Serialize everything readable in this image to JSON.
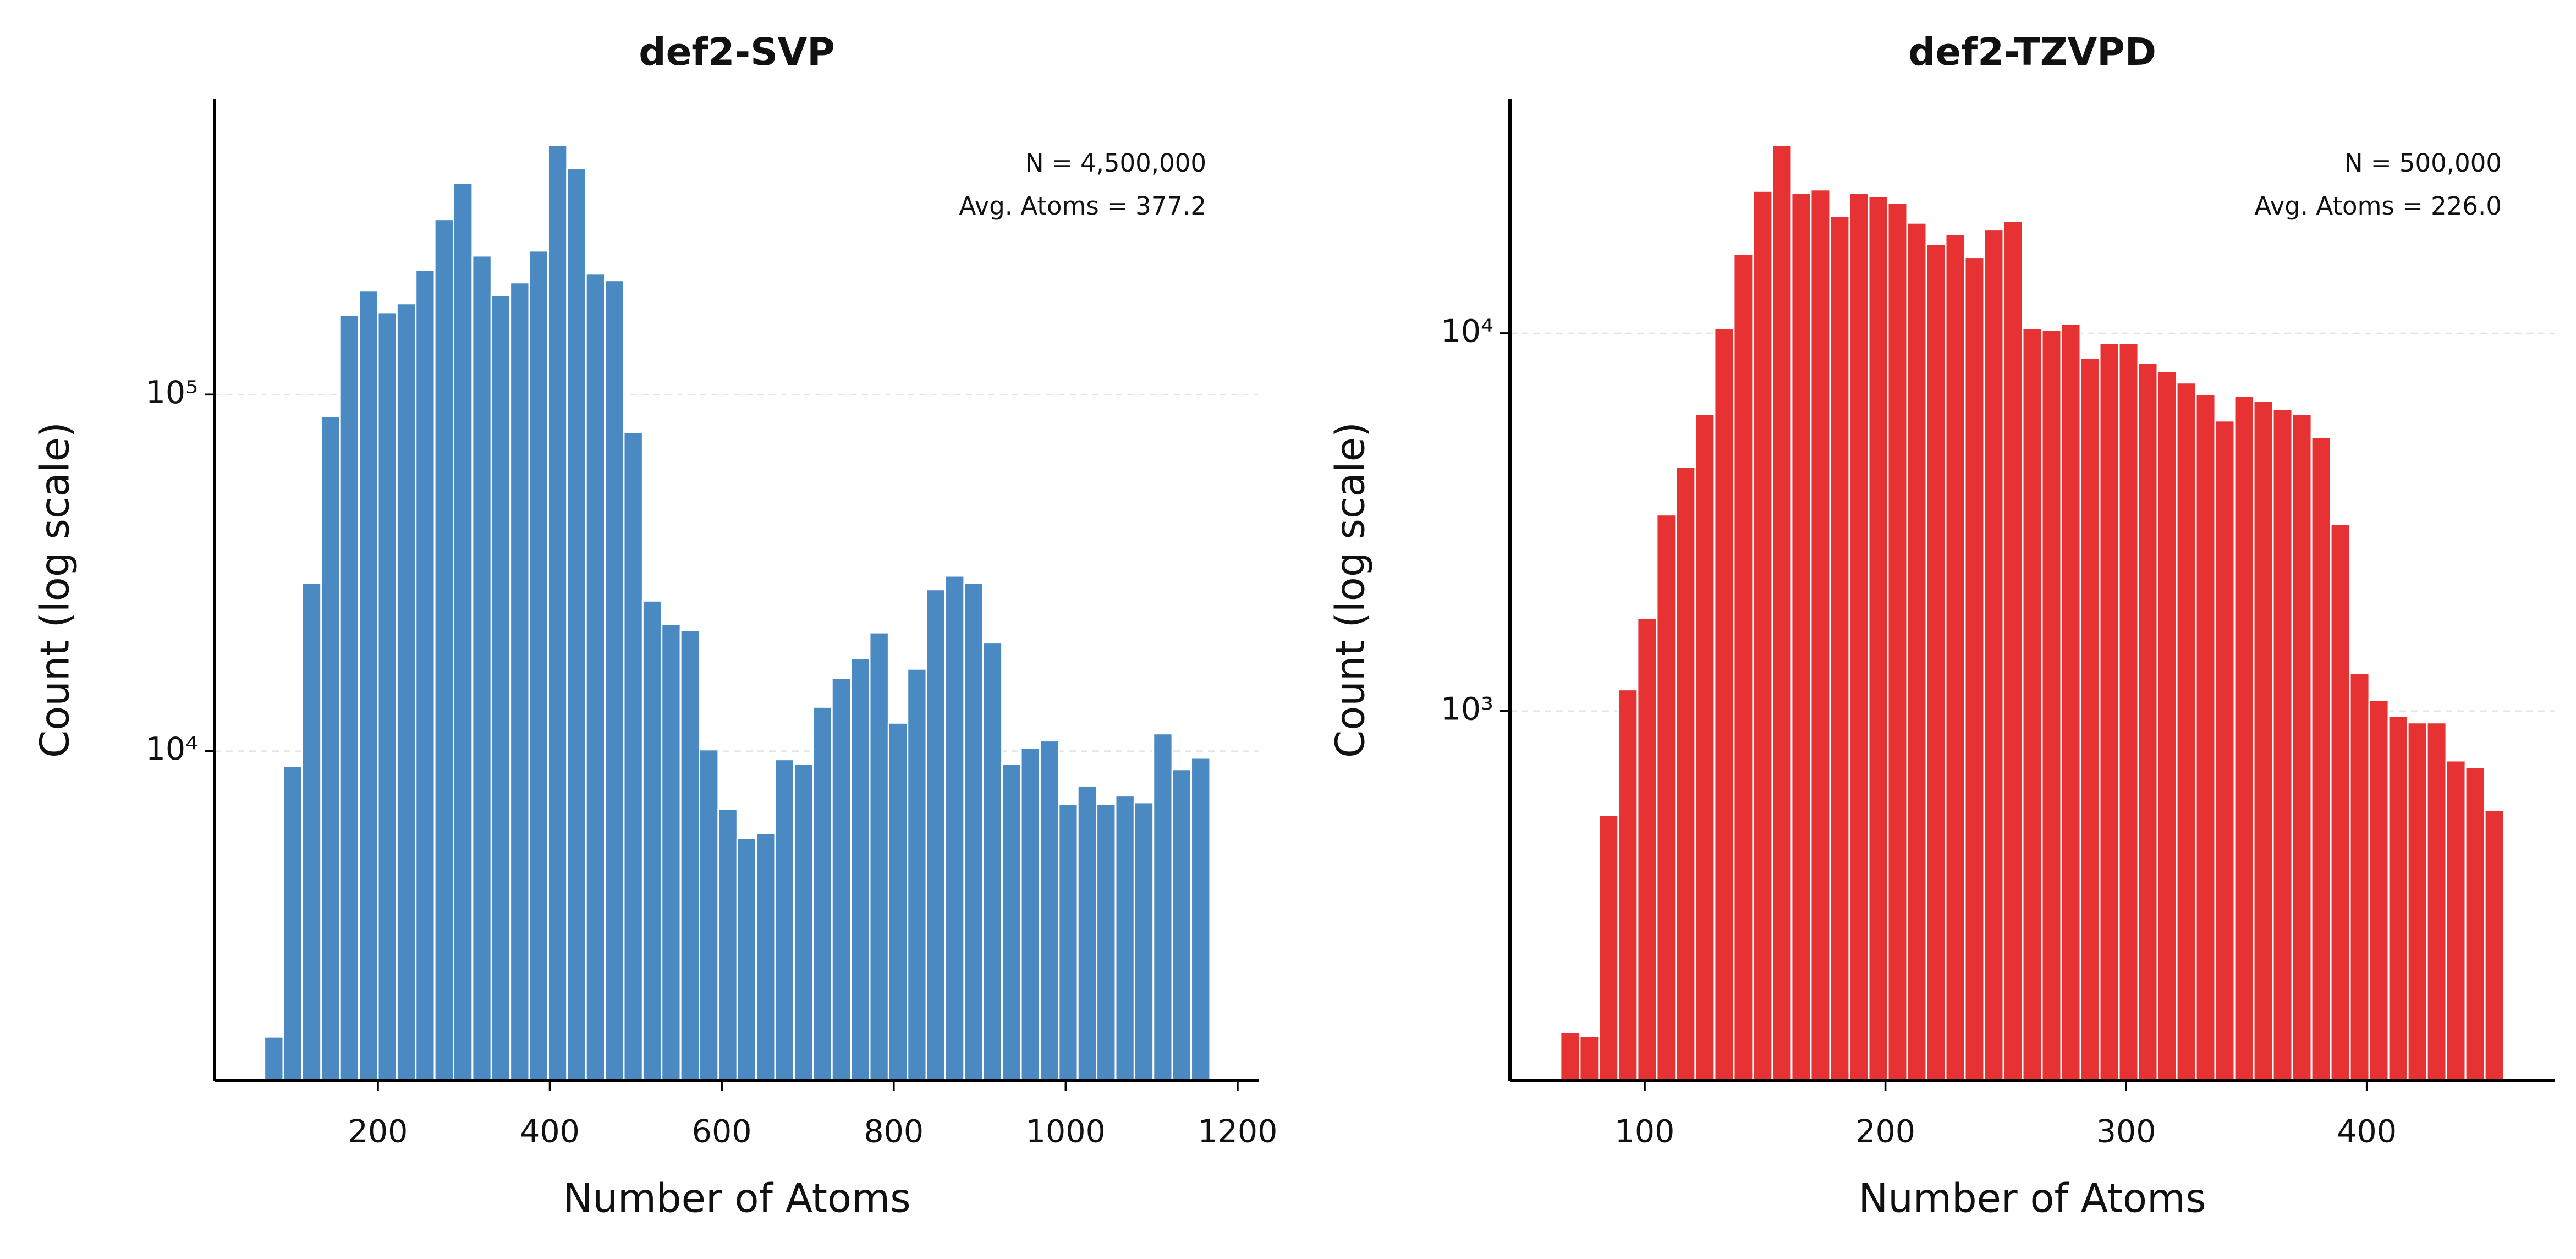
{
  "chart_data": [
    {
      "type": "histogram",
      "title": "def2-SVP",
      "xlabel": "Number of Atoms",
      "ylabel": "Count (log scale)",
      "annotations": [
        "N = 4,500,000",
        "Avg. Atoms = 377.2"
      ],
      "color": "#4a89c2",
      "log_y": true,
      "grid": true,
      "bins": [
        68,
        90,
        112,
        134,
        156,
        178,
        200,
        222,
        244,
        266,
        288,
        310,
        332,
        354,
        376,
        398,
        420,
        442,
        464,
        486,
        508,
        530,
        552,
        574,
        596,
        618,
        640,
        662,
        684,
        706,
        728,
        750,
        772,
        794,
        816,
        838,
        860,
        882,
        904,
        926,
        948,
        970,
        992,
        1014,
        1036,
        1058,
        1080,
        1102,
        1124,
        1146,
        1168
      ],
      "counts": [
        1580,
        9090,
        29600,
        87000,
        167000,
        196000,
        170000,
        180000,
        223000,
        310000,
        392000,
        245000,
        190000,
        206000,
        253000,
        500000,
        430000,
        218000,
        209000,
        78300,
        26400,
        22700,
        21800,
        10100,
        6890,
        5690,
        5880,
        9480,
        9190,
        13300,
        16000,
        18200,
        21500,
        12000,
        17000,
        28400,
        31000,
        29600,
        20200,
        9190,
        10200,
        10700,
        7110,
        8000,
        7110,
        7500,
        7180,
        11200,
        8890,
        9570
      ],
      "xlim": [
        10,
        1225
      ],
      "xticks": [
        200,
        400,
        600,
        800,
        1000,
        1200
      ],
      "ylim": [
        1190,
        674000
      ],
      "yticks": [
        {
          "value": 10000,
          "label": "10⁴"
        },
        {
          "value": 100000,
          "label": "10⁵"
        }
      ]
    },
    {
      "type": "histogram",
      "title": "def2-TZVPD",
      "xlabel": "Number of Atoms",
      "ylabel": "Count (log scale)",
      "annotations": [
        "N = 500,000",
        "Avg. Atoms = 226.0"
      ],
      "color": "#e63232",
      "log_y": true,
      "grid": true,
      "bins": [
        65,
        73,
        81,
        89,
        97,
        105,
        113,
        121,
        129,
        137,
        145,
        153,
        161,
        169,
        177,
        185,
        193,
        201,
        209,
        217,
        225,
        233,
        241,
        249,
        257,
        265,
        273,
        281,
        289,
        297,
        305,
        313,
        321,
        329,
        337,
        345,
        353,
        361,
        369,
        377,
        385,
        393,
        401,
        409,
        417,
        425,
        433,
        441,
        449,
        457
      ],
      "counts": [
        141,
        138,
        531,
        1140,
        1760,
        3310,
        4430,
        6110,
        10300,
        16200,
        23800,
        31500,
        23500,
        24000,
        20400,
        23500,
        23000,
        22100,
        19600,
        17200,
        18300,
        15900,
        18800,
        19800,
        10300,
        10200,
        10600,
        8590,
        9420,
        9420,
        8340,
        7940,
        7400,
        6890,
        5870,
        6820,
        6620,
        6300,
        6110,
        5310,
        3120,
        1260,
        1070,
        970,
        932,
        932,
        739,
        711,
        547
      ],
      "xlim": [
        44,
        478
      ],
      "xticks": [
        100,
        200,
        300,
        400
      ],
      "ylim": [
        105,
        41700
      ],
      "yticks": [
        {
          "value": 1000,
          "label": "10³"
        },
        {
          "value": 10000,
          "label": "10⁴"
        }
      ]
    }
  ]
}
